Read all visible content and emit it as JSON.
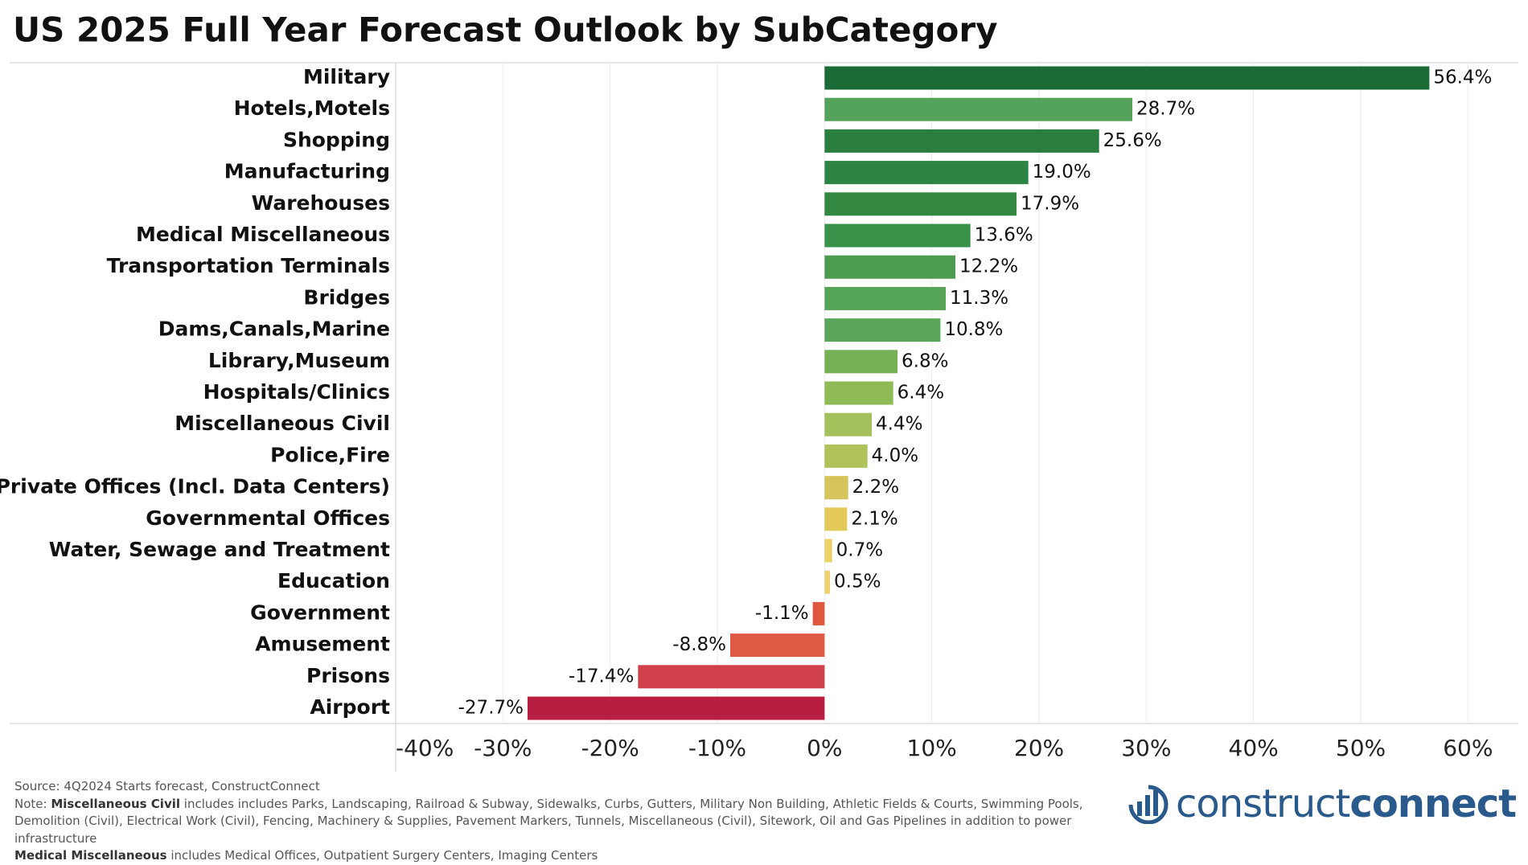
{
  "chart_data": {
    "type": "bar",
    "orientation": "horizontal",
    "title": "US 2025 Full Year Forecast Outlook by SubCategory",
    "categories": [
      "Military",
      "Hotels,Motels",
      "Shopping",
      "Manufacturing",
      "Warehouses",
      "Medical Miscellaneous",
      "Transportation Terminals",
      "Bridges",
      "Dams,Canals,Marine",
      "Library,Museum",
      "Hospitals/Clinics",
      "Miscellaneous Civil",
      "Police,Fire",
      "Private Offices (Incl. Data Centers)",
      "Governmental Offices",
      "Water, Sewage and Treatment",
      "Education",
      "Government",
      "Amusement",
      "Prisons",
      "Airport"
    ],
    "values": [
      56.4,
      28.7,
      25.6,
      19.0,
      17.9,
      13.6,
      12.2,
      11.3,
      10.8,
      6.8,
      6.4,
      4.4,
      4.0,
      2.2,
      2.1,
      0.7,
      0.5,
      -1.1,
      -8.8,
      -17.4,
      -27.7
    ],
    "value_labels": [
      "56.4%",
      "28.7%",
      "25.6%",
      "19.0%",
      "17.9%",
      "13.6%",
      "12.2%",
      "11.3%",
      "10.8%",
      "6.8%",
      "6.4%",
      "4.4%",
      "4.0%",
      "2.2%",
      "2.1%",
      "0.7%",
      "0.5%",
      "-1.1%",
      "-8.8%",
      "-17.4%",
      "-27.7%"
    ],
    "colors": [
      "#1a6b35",
      "#55a35a",
      "#2a7e3e",
      "#2e8442",
      "#33893f",
      "#3a9148",
      "#4b9b50",
      "#56a457",
      "#5aa65a",
      "#75b157",
      "#8fbb57",
      "#a3c05a",
      "#afc25a",
      "#d7c45a",
      "#e3c95a",
      "#ecd166",
      "#f0d070",
      "#e0573e",
      "#dd5b45",
      "#d0404a",
      "#b81e42"
    ],
    "xlim": [
      -40,
      65
    ],
    "xticks": [
      {
        "value": -40,
        "label": "-40%"
      },
      {
        "value": -30,
        "label": "-30%"
      },
      {
        "value": -20,
        "label": "-20%"
      },
      {
        "value": -10,
        "label": "-10%"
      },
      {
        "value": 0,
        "label": "0%"
      },
      {
        "value": 10,
        "label": "10%"
      },
      {
        "value": 20,
        "label": "20%"
      },
      {
        "value": 30,
        "label": "30%"
      },
      {
        "value": 40,
        "label": "40%"
      },
      {
        "value": 50,
        "label": "50%"
      },
      {
        "value": 60,
        "label": "60%"
      }
    ],
    "grid": true
  },
  "footer": {
    "source": "Source: 4Q2024 Starts forecast, ConstructConnect",
    "note_prefix": "Note:",
    "notes": [
      {
        "term": "Miscellaneous Civil",
        "text": "includes includes Parks, Landscaping, Railroad & Subway, Sidewalks, Curbs, Gutters, Military Non Building, Athletic Fields & Courts, Swimming Pools, Demolition (Civil), Electrical Work (Civil), Fencing, Machinery & Supplies, Pavement Markers, Tunnels, Miscellaneous (Civil), Sitework, Oil and Gas Pipelines in addition to power infrastructure"
      },
      {
        "term": "Medical Miscellaneous",
        "text": "includes Medical Offices, Outpatient Surgery Centers, Imaging Centers"
      }
    ]
  },
  "logo": {
    "light": "construct",
    "bold": "connect"
  }
}
